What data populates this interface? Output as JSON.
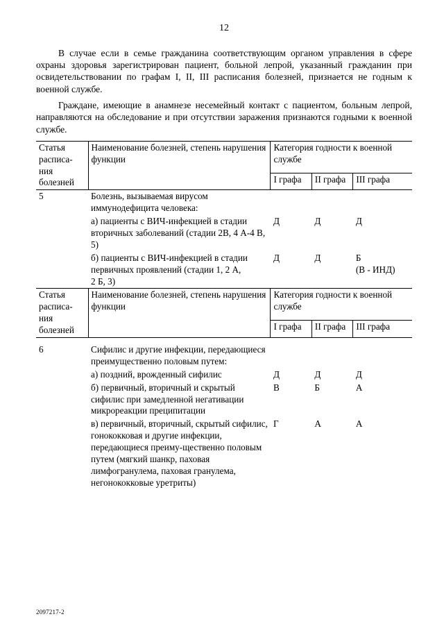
{
  "page_number": "12",
  "paragraphs": {
    "p1": "В случае если в семье гражданина соответствующим органом управления в сфере охраны здоровья зарегистрирован пациент, больной лепрой, указанный гражданин при освидетельствовании по графам I, II, III расписания болезней, признается не годным к военной службе.",
    "p2": "Граждане, имеющие в анамнезе несемейный контакт с пациентом, больным лепрой, направляются на обследование и при отсутствии заражения признаются годными к военной службе."
  },
  "colors": {
    "text": "#000000",
    "bg": "#ffffff",
    "border": "#000000"
  },
  "header_labels": {
    "article": "Статья расписа-ния болезней",
    "name": "Наименование болезней, степень нарушения функции",
    "category": "Категория годности к военной службе",
    "g1": "I графа",
    "g2": "II графа",
    "g3": "III графа"
  },
  "article5": {
    "num": "5",
    "title": "Болезнь, вызываемая вирусом иммунодефицита человека:",
    "rows": [
      {
        "label": "а) пациенты с ВИЧ-инфекцией в стадии вторичных заболеваний (стадии 2В, 4 А-4 В, 5)",
        "g1": "Д",
        "g2": "Д",
        "g3": "Д"
      },
      {
        "label": "б) пациенты с ВИЧ-инфекцией в стадии первичных проявлений (стадии 1, 2 А,\n2 Б, 3)",
        "g1": "Д",
        "g2": "Д",
        "g3": "Б\n(В - ИНД)"
      }
    ]
  },
  "article6": {
    "num": "6",
    "title": "Сифилис и другие инфекции, передающиеся преимущественно половым путем:",
    "rows": [
      {
        "label": "а) поздний, врожденный сифилис",
        "g1": "Д",
        "g2": "Д",
        "g3": "Д"
      },
      {
        "label": "б) первичный, вторичный и скрытый сифилис при замедленной негативации микрореакции преципитации",
        "g1": "В",
        "g2": "Б",
        "g3": "А"
      },
      {
        "label": "в) первичный, вторичный, скрытый сифилис, гонококковая и другие инфекции, передающиеся преиму-щественно половым путем (мягкий шанкр, паховая лимфогранулема, паховая гранулема, негонококковые уретриты)",
        "g1": "Г",
        "g2": "А",
        "g3": "А"
      }
    ]
  },
  "footer_code": "2097217-2"
}
